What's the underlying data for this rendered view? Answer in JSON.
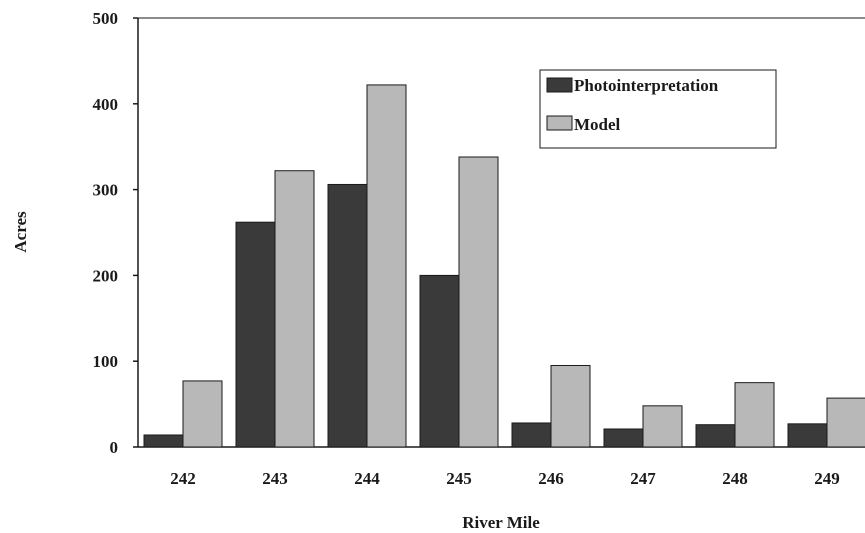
{
  "chart_data": {
    "type": "bar",
    "title": "",
    "xlabel": "River Mile",
    "ylabel": "Acres",
    "ylim": [
      0,
      500
    ],
    "yticks": [
      0,
      100,
      200,
      300,
      400,
      500
    ],
    "grid": false,
    "legend_position": "top-right",
    "categories": [
      "242",
      "243",
      "244",
      "245",
      "246",
      "247",
      "248",
      "249"
    ],
    "series": [
      {
        "name": "Photointerpretation",
        "color": "#3a3a3a",
        "values": [
          14,
          262,
          306,
          200,
          28,
          21,
          26,
          27
        ]
      },
      {
        "name": "Model",
        "color": "#b8b8b8",
        "values": [
          77,
          322,
          422,
          338,
          95,
          48,
          75,
          57
        ]
      }
    ]
  }
}
